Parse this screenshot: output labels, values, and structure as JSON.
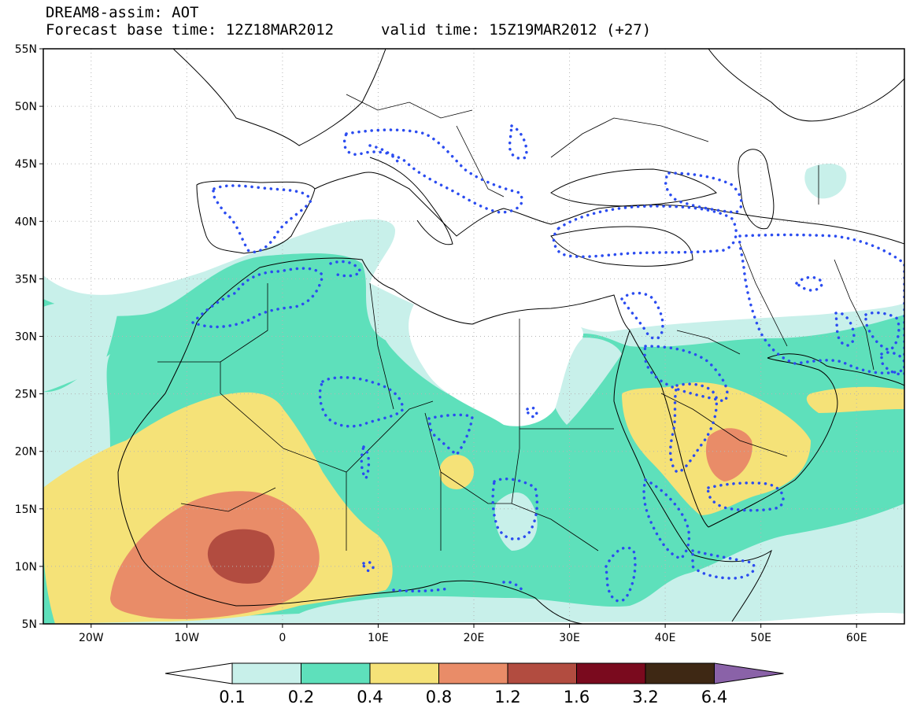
{
  "header": {
    "title": "DREAM8-assim: AOT",
    "base_time": "Forecast base time: 12Z18MAR2012",
    "valid_time": "valid time: 15Z19MAR2012 (+27)"
  },
  "map": {
    "lat_ticks": [
      "55N",
      "50N",
      "45N",
      "40N",
      "35N",
      "30N",
      "25N",
      "20N",
      "15N",
      "10N",
      "5N"
    ],
    "lon_ticks": [
      "20W",
      "10W",
      "0",
      "10E",
      "20E",
      "30E",
      "40E",
      "50E",
      "60E"
    ],
    "lon_range": [
      -25,
      65
    ],
    "lat_range": [
      5,
      55
    ],
    "grid": true
  },
  "colorbar": {
    "labels": [
      "0.1",
      "0.2",
      "0.4",
      "0.8",
      "1.2",
      "1.6",
      "3.2",
      "6.4"
    ],
    "colors": [
      "#ffffff",
      "#c8f0ea",
      "#5ee0bb",
      "#f5e278",
      "#e98c68",
      "#b24c40",
      "#7a0a1e",
      "#3e2814",
      "#8a62a8"
    ]
  },
  "legend_colors": {
    "aot_01_02": "#c8f0ea",
    "aot_02_04": "#5ee0bb",
    "aot_04_08": "#f5e278",
    "aot_08_12": "#e98c68",
    "aot_12_16": "#b24c40",
    "contour": "#2b4cf0"
  }
}
